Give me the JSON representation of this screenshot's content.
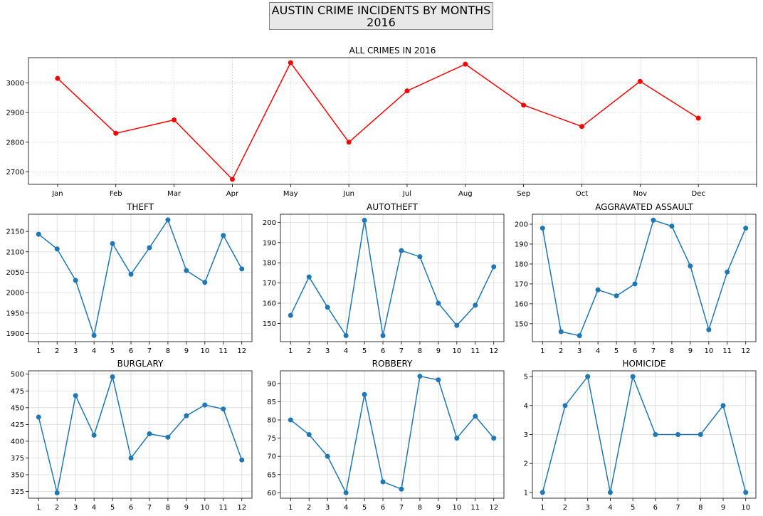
{
  "suptitle": {
    "line1": "AUSTIN CRIME INCIDENTS BY MONTHS",
    "line2": "2016"
  },
  "chart_data": [
    {
      "type": "line",
      "title": "ALL CRIMES IN 2016",
      "categories": [
        "Jan",
        "Feb",
        "Mar",
        "Apr",
        "May",
        "Jun",
        "Jul",
        "Aug",
        "Sep",
        "Oct",
        "Nov",
        "Dec"
      ],
      "values": [
        3015,
        2830,
        2875,
        2675,
        3068,
        2800,
        2973,
        3063,
        2925,
        2853,
        3005,
        2881
      ],
      "ylim": [
        2658,
        3085
      ],
      "yticks": [
        2700,
        2800,
        2900,
        3000
      ],
      "color": "#ff0000",
      "grid": true
    },
    {
      "type": "line",
      "title": "THEFT",
      "x": [
        1,
        2,
        3,
        4,
        5,
        6,
        7,
        8,
        9,
        10,
        11,
        12
      ],
      "values": [
        2143,
        2107,
        2030,
        1895,
        2120,
        2045,
        2110,
        2178,
        2054,
        2025,
        2140,
        2058
      ],
      "ylim": [
        1880,
        2192
      ],
      "yticks": [
        1900,
        1950,
        2000,
        2050,
        2100,
        2150
      ],
      "color": "#1f77b4",
      "grid": true
    },
    {
      "type": "line",
      "title": "AUTOTHEFT",
      "x": [
        1,
        2,
        3,
        4,
        5,
        6,
        7,
        8,
        9,
        10,
        11,
        12
      ],
      "values": [
        154,
        173,
        158,
        144,
        201,
        144,
        186,
        183,
        160,
        149,
        159,
        178
      ],
      "ylim": [
        141,
        204
      ],
      "yticks": [
        150,
        160,
        170,
        180,
        190,
        200
      ],
      "color": "#1f77b4",
      "grid": true
    },
    {
      "type": "line",
      "title": "AGGRAVATED ASSAULT",
      "x": [
        1,
        2,
        3,
        4,
        5,
        6,
        7,
        8,
        9,
        10,
        11,
        12
      ],
      "values": [
        198,
        146,
        144,
        167,
        164,
        170,
        202,
        199,
        179,
        147,
        176,
        198
      ],
      "ylim": [
        141,
        205
      ],
      "yticks": [
        150,
        160,
        170,
        180,
        190,
        200
      ],
      "color": "#1f77b4",
      "grid": true
    },
    {
      "type": "line",
      "title": "BURGLARY",
      "x": [
        1,
        2,
        3,
        4,
        5,
        6,
        7,
        8,
        9,
        10,
        11,
        12
      ],
      "values": [
        436,
        323,
        468,
        409,
        496,
        375,
        411,
        406,
        438,
        454,
        448,
        372
      ],
      "ylim": [
        315,
        505
      ],
      "yticks": [
        325,
        350,
        375,
        400,
        425,
        450,
        475,
        500
      ],
      "color": "#1f77b4",
      "grid": true
    },
    {
      "type": "line",
      "title": "ROBBERY",
      "x": [
        1,
        2,
        3,
        4,
        5,
        6,
        7,
        8,
        9,
        10,
        11,
        12
      ],
      "values": [
        80,
        76,
        70,
        60,
        87,
        63,
        61,
        92,
        91,
        75,
        81,
        75
      ],
      "ylim": [
        58.5,
        93.5
      ],
      "yticks": [
        60,
        65,
        70,
        75,
        80,
        85,
        90
      ],
      "color": "#1f77b4",
      "grid": true
    },
    {
      "type": "line",
      "title": "HOMICIDE",
      "x": [
        1,
        2,
        3,
        4,
        5,
        6,
        7,
        8,
        9,
        10
      ],
      "values": [
        1,
        4,
        5,
        1,
        5,
        3,
        3,
        3,
        4,
        1
      ],
      "ylim": [
        0.8,
        5.2
      ],
      "yticks": [
        1,
        2,
        3,
        4,
        5
      ],
      "color": "#1f77b4",
      "grid": true
    }
  ]
}
